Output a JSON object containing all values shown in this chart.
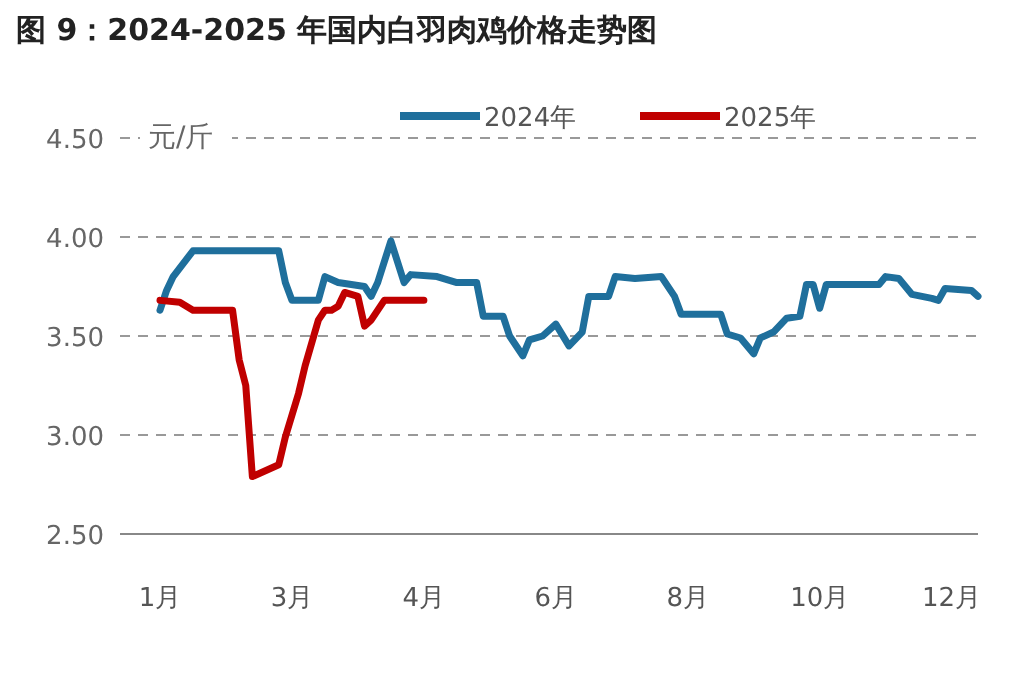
{
  "chart_data": {
    "type": "line",
    "title": "图 9：2024-2025 年国内白羽肉鸡价格走势图",
    "ylabel": "元/斤",
    "categories": [
      "1月",
      null,
      null,
      null,
      null,
      null,
      null,
      null,
      null,
      null,
      null,
      null,
      null,
      null,
      null,
      null,
      null,
      null,
      null,
      null,
      "3月",
      null,
      null,
      null,
      null,
      null,
      null,
      null,
      null,
      null,
      null,
      null,
      null,
      null,
      null,
      null,
      null,
      null,
      null,
      null,
      "4月",
      null,
      null,
      null,
      null,
      null,
      null,
      null,
      null,
      null,
      null,
      null,
      null,
      null,
      null,
      null,
      null,
      null,
      null,
      null,
      "6月",
      null,
      null,
      null,
      null,
      null,
      null,
      null,
      null,
      null,
      null,
      null,
      null,
      null,
      null,
      null,
      null,
      null,
      null,
      null,
      "8月",
      null,
      null,
      null,
      null,
      null,
      null,
      null,
      null,
      null,
      null,
      null,
      null,
      null,
      null,
      null,
      null,
      null,
      null,
      null,
      "10月",
      null,
      null,
      null,
      null,
      null,
      null,
      null,
      null,
      null,
      null,
      null,
      null,
      null,
      null,
      null,
      null,
      null,
      null,
      null,
      "12月",
      null,
      null,
      null,
      null
    ],
    "ylim": [
      2.5,
      4.5
    ],
    "yticks": [
      {
        "value": 2.5,
        "label": "2.50"
      },
      {
        "value": 3,
        "label": "3.00"
      },
      {
        "value": 3.5,
        "label": "3.50"
      },
      {
        "value": 4,
        "label": "4.00"
      },
      {
        "value": 4.5,
        "label": "4.50"
      }
    ],
    "grid": "y",
    "legend": "top",
    "marker": "none",
    "line_style": "solid",
    "series": [
      {
        "name": "2024年",
        "color": "#1f6f9c",
        "values": [
          3.63,
          3.73,
          3.8,
          null,
          null,
          3.93,
          null,
          null,
          null,
          null,
          null,
          null,
          null,
          null,
          null,
          null,
          null,
          null,
          3.93,
          3.77,
          3.68,
          null,
          null,
          null,
          3.68,
          3.8,
          null,
          3.77,
          null,
          null,
          null,
          3.75,
          3.7,
          3.77,
          null,
          3.98,
          null,
          3.77,
          3.81,
          null,
          null,
          null,
          3.8,
          null,
          null,
          3.77,
          null,
          null,
          3.77,
          3.6,
          null,
          null,
          3.6,
          3.5,
          null,
          3.4,
          3.48,
          null,
          3.5,
          null,
          3.56,
          null,
          3.45,
          null,
          3.52,
          3.7,
          null,
          null,
          3.7,
          3.8,
          null,
          null,
          3.79,
          null,
          null,
          null,
          3.8,
          null,
          3.7,
          3.61,
          null,
          null,
          null,
          null,
          null,
          3.61,
          3.51,
          null,
          3.49,
          null,
          3.41,
          3.49,
          null,
          3.52,
          null,
          3.59,
          null,
          3.6,
          3.76,
          3.76,
          3.64,
          3.76,
          null,
          null,
          null,
          null,
          null,
          null,
          null,
          3.76,
          3.8,
          null,
          3.79,
          null,
          3.71,
          null,
          null,
          3.69,
          3.68,
          3.74,
          null,
          null,
          null,
          3.73,
          3.7
        ]
      },
      {
        "name": "2025年",
        "color": "#c00000",
        "values": [
          3.68,
          null,
          null,
          3.67,
          null,
          3.63,
          null,
          null,
          null,
          null,
          null,
          3.63,
          3.38,
          3.25,
          2.79,
          null,
          null,
          null,
          2.85,
          2.99,
          null,
          3.21,
          3.35,
          null,
          3.58,
          3.63,
          3.63,
          3.65,
          3.72,
          null,
          3.7,
          3.55,
          3.58,
          null,
          3.68,
          null,
          null,
          null,
          null,
          null,
          3.68,
          null,
          null,
          null,
          null,
          null,
          null,
          null,
          null,
          null,
          null,
          null,
          null,
          null,
          null,
          null,
          null,
          null,
          null,
          null,
          null,
          null,
          null,
          null,
          null,
          null,
          null,
          null,
          null,
          null,
          null,
          null,
          null,
          null,
          null,
          null,
          null,
          null,
          null,
          null,
          null,
          null,
          null,
          null,
          null,
          null,
          null,
          null,
          null,
          null,
          null,
          null,
          null,
          null,
          null,
          null,
          null,
          null,
          null,
          null,
          null,
          null,
          null,
          null,
          null,
          null,
          null,
          null,
          null,
          null,
          null,
          null,
          null,
          null,
          null,
          null,
          null,
          null,
          null,
          null,
          null,
          null,
          null,
          null,
          null
        ]
      }
    ]
  }
}
